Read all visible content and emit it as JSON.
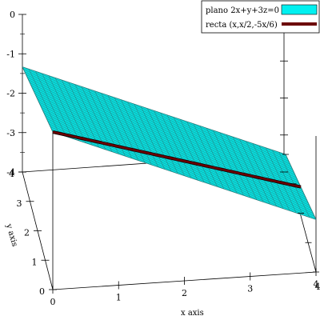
{
  "chart_data": {
    "type": "3d-surface",
    "title": "",
    "xlabel": "x axis",
    "ylabel": "y axis",
    "zlabel": "",
    "xlim": [
      0,
      4
    ],
    "ylim": [
      0,
      4
    ],
    "zlim": [
      -4,
      0
    ],
    "x_ticks": [
      "0",
      "1",
      "2",
      "3",
      "4"
    ],
    "y_ticks": [
      "0",
      "1",
      "2",
      "3",
      "4"
    ],
    "z_ticks": [
      "0",
      "-1",
      "-2",
      "-3",
      "-4"
    ],
    "legend_position": "top-right",
    "series": [
      {
        "name": "plano 2x+y+3z=0",
        "kind": "surface",
        "equation_z": "-(2x+y)/3",
        "color": "#00f0f0",
        "edge_color": "#2a7a7a"
      },
      {
        "name": "recta (x,x/2,-5x/6)",
        "kind": "line",
        "points": [
          [
            0,
            0,
            0
          ],
          [
            4,
            2,
            -3.333
          ]
        ],
        "color": "#6b0000"
      }
    ]
  }
}
